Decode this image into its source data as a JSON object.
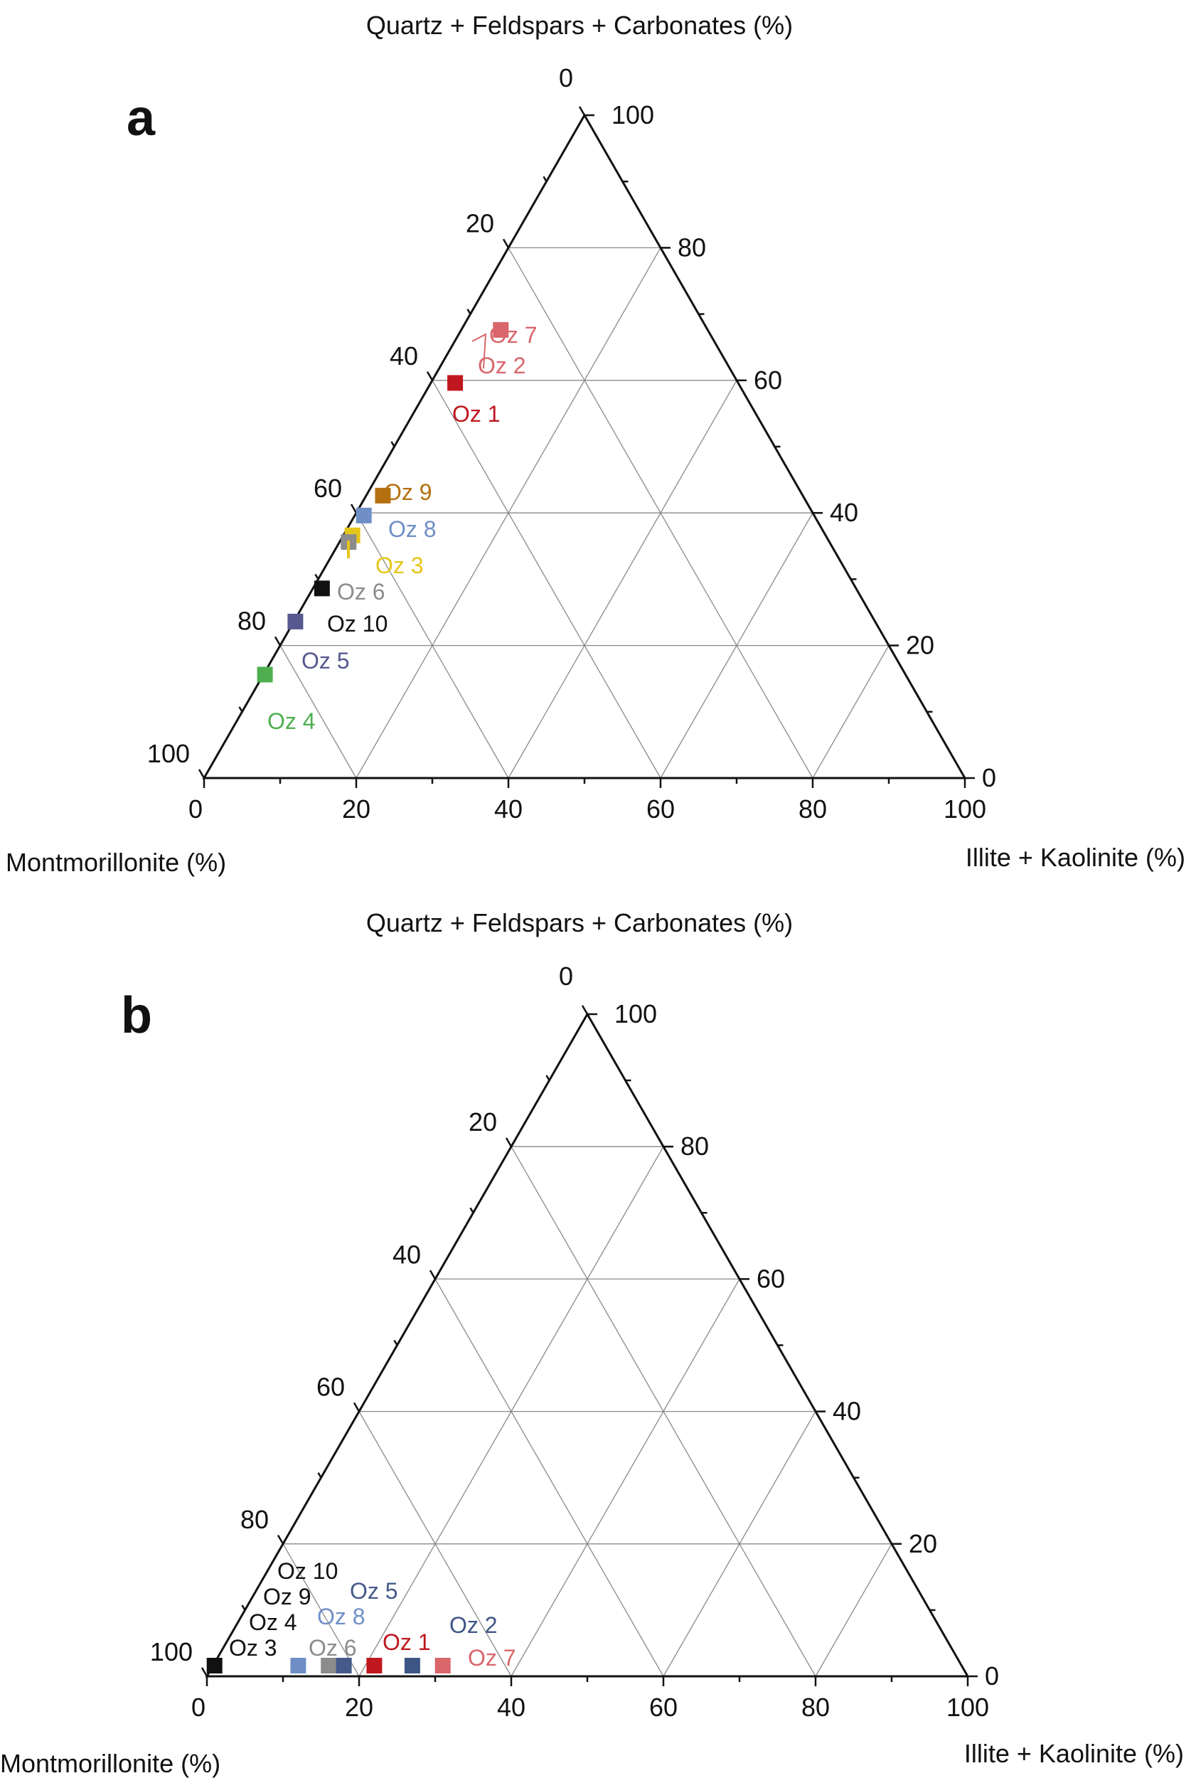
{
  "chart_data": [
    {
      "type": "ternary",
      "panel": "a",
      "axes": {
        "top": "Quartz + Feldspars + Carbonates (%)",
        "left": "Montmorillonite (%)",
        "right": "Illite + Kaolinite (%)"
      },
      "range": [
        0,
        100
      ],
      "ticks": [
        "0",
        "20",
        "40",
        "60",
        "80",
        "100"
      ],
      "grid": true,
      "points": [
        {
          "name": "Oz 7",
          "qfc": 66,
          "mont": 28,
          "ik": 6,
          "color": "#d9666b"
        },
        {
          "name": "Oz 2",
          "qfc": 66,
          "mont": 28,
          "ik": 6,
          "color": "#d9666b"
        },
        {
          "name": "Oz 1",
          "qfc": 58,
          "mont": 38,
          "ik": 4,
          "color": "#c0171f"
        },
        {
          "name": "Oz 9",
          "qfc": 41,
          "mont": 56,
          "ik": 3,
          "color": "#b5700f"
        },
        {
          "name": "Oz 8",
          "qfc": 38,
          "mont": 60,
          "ik": 2,
          "color": "#6f8fc6"
        },
        {
          "name": "Oz 3",
          "qfc": 35,
          "mont": 63,
          "ik": 2,
          "color": "#e6c619"
        },
        {
          "name": "Oz 6",
          "qfc": 34,
          "mont": 64,
          "ik": 2,
          "color": "#8c8c8c"
        },
        {
          "name": "Oz 10",
          "qfc": 27,
          "mont": 71,
          "ik": 2,
          "color": "#111111"
        },
        {
          "name": "Oz 5",
          "qfc": 22,
          "mont": 77,
          "ik": 1,
          "color": "#56588f"
        },
        {
          "name": "Oz 4",
          "qfc": 14,
          "mont": 85,
          "ik": 1,
          "color": "#4faf50"
        }
      ]
    },
    {
      "type": "ternary",
      "panel": "b",
      "axes": {
        "top": "Quartz + Feldspars + Carbonates (%)",
        "left": "Montmorillonite (%)",
        "right": "Illite + Kaolinite (%)"
      },
      "range": [
        0,
        100
      ],
      "ticks": [
        "0",
        "20",
        "40",
        "60",
        "80",
        "100"
      ],
      "grid": true,
      "points": [
        {
          "name": "Oz 10",
          "qfc": 0,
          "mont": 99,
          "ik": 1,
          "color": "#111111"
        },
        {
          "name": "Oz 9",
          "qfc": 0,
          "mont": 99,
          "ik": 1,
          "color": "#111111"
        },
        {
          "name": "Oz 4",
          "qfc": 0,
          "mont": 99,
          "ik": 1,
          "color": "#111111"
        },
        {
          "name": "Oz 3",
          "qfc": 0,
          "mont": 99,
          "ik": 1,
          "color": "#111111"
        },
        {
          "name": "Oz 8",
          "qfc": 0,
          "mont": 88,
          "ik": 12,
          "color": "#6f8fc6"
        },
        {
          "name": "Oz 6",
          "qfc": 0,
          "mont": 84,
          "ik": 16,
          "color": "#8c8c8c"
        },
        {
          "name": "Oz 5",
          "qfc": 0,
          "mont": 82,
          "ik": 18,
          "color": "#455a8a"
        },
        {
          "name": "Oz 1",
          "qfc": 0,
          "mont": 78,
          "ik": 22,
          "color": "#c0171f"
        },
        {
          "name": "Oz 2",
          "qfc": 0,
          "mont": 73,
          "ik": 27,
          "color": "#3f5586"
        },
        {
          "name": "Oz 7",
          "qfc": 0,
          "mont": 69,
          "ik": 31,
          "color": "#d9666b"
        }
      ]
    }
  ]
}
